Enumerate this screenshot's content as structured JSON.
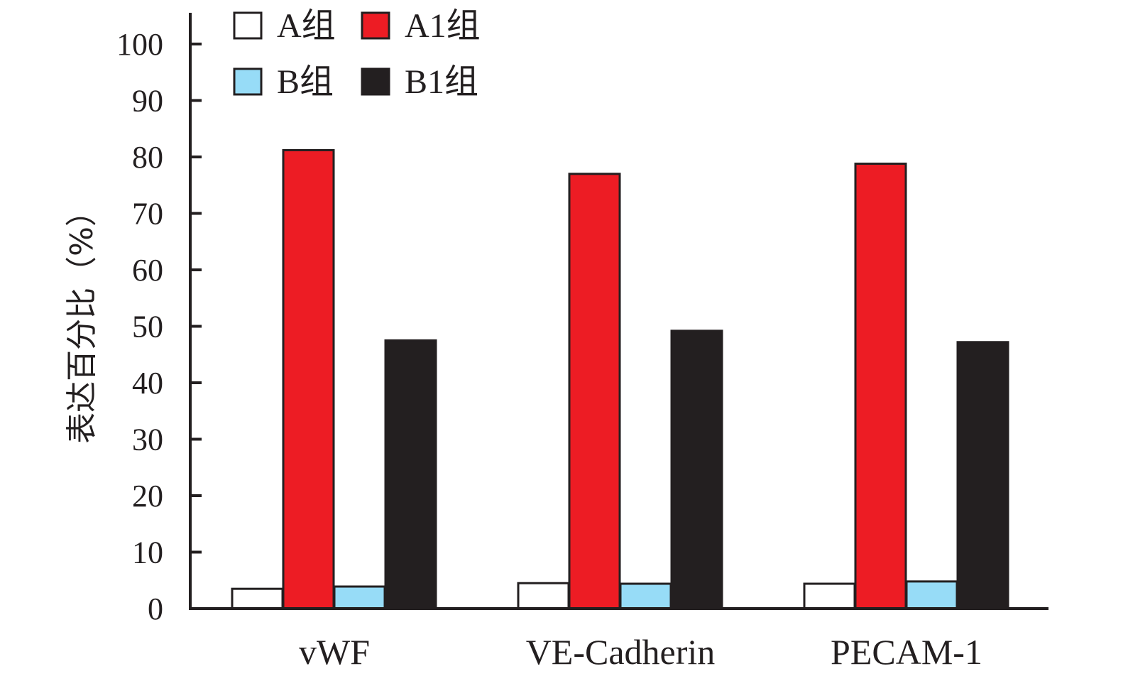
{
  "chart_data": {
    "type": "bar",
    "title": "",
    "xlabel": "",
    "ylabel": "表达百分比（%）",
    "ylim": [
      0,
      100
    ],
    "yticks": [
      0,
      10,
      20,
      30,
      40,
      50,
      60,
      70,
      80,
      90,
      100
    ],
    "grid": false,
    "legend_position": "top-left",
    "categories": [
      "vWF",
      "VE-Cadherin",
      "PECAM-1"
    ],
    "series": [
      {
        "name": "A组",
        "color": "#ffffff",
        "values": [
          3.5,
          4.5,
          4.4
        ]
      },
      {
        "name": "A1组",
        "color": "#ed1c24",
        "values": [
          81.2,
          77.0,
          78.8
        ]
      },
      {
        "name": "B组",
        "color": "#97dcf7",
        "values": [
          3.9,
          4.4,
          4.8
        ]
      },
      {
        "name": "B1组",
        "color": "#231f20",
        "values": [
          47.5,
          49.2,
          47.2
        ]
      }
    ]
  }
}
